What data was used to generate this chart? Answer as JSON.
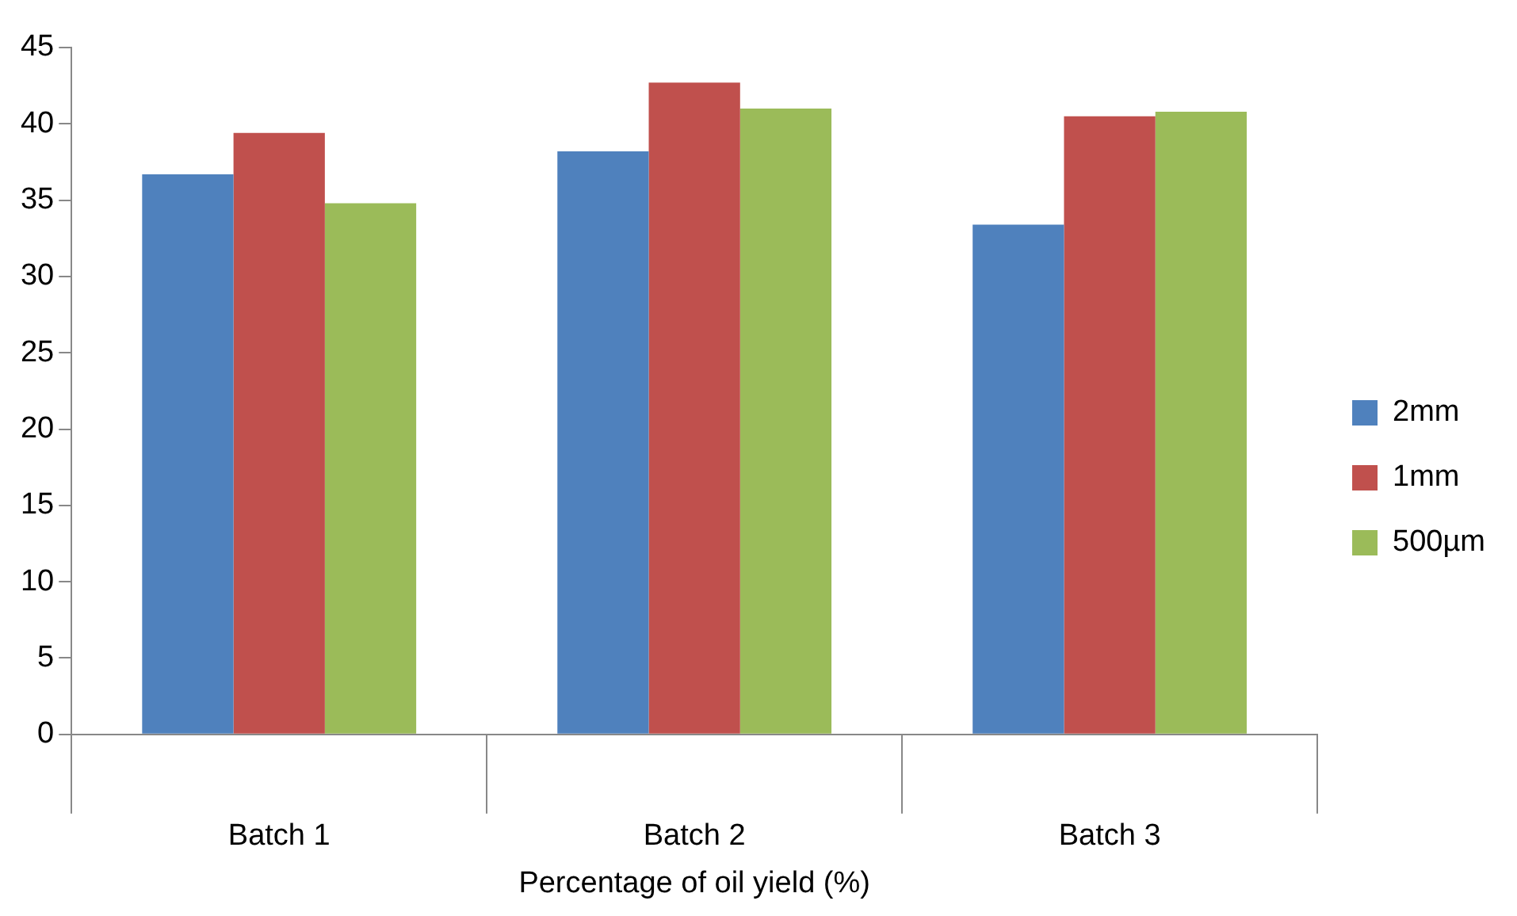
{
  "chart_data": {
    "type": "bar",
    "xlabel": "Percentage of oil yield (%)",
    "categories": [
      "Batch 1",
      "Batch 2",
      "Batch 3"
    ],
    "series": [
      {
        "name": "2mm",
        "color": "#4f81bd",
        "values": [
          36.7,
          38.2,
          33.4
        ]
      },
      {
        "name": "1mm",
        "color": "#c0504d",
        "values": [
          39.4,
          42.7,
          40.5
        ]
      },
      {
        "name": "500µm",
        "color": "#9bbb59",
        "values": [
          34.8,
          41.0,
          40.8
        ]
      }
    ],
    "ylim": [
      0,
      45
    ],
    "yticks": [
      0,
      5,
      10,
      15,
      20,
      25,
      30,
      35,
      40,
      45
    ],
    "grid": false,
    "legend": "right"
  }
}
